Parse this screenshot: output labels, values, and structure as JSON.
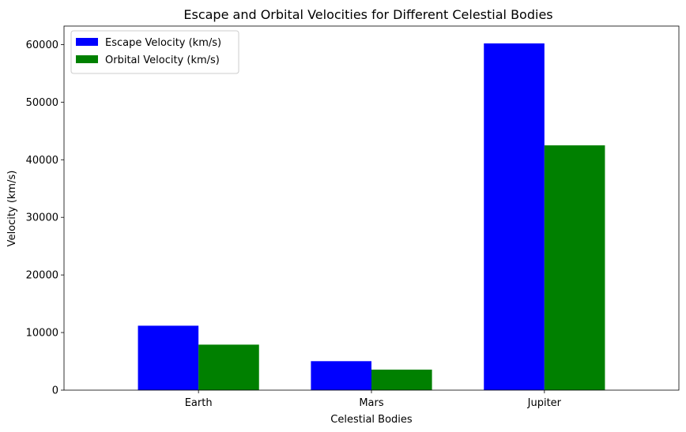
{
  "chart_data": {
    "type": "bar",
    "title": "Escape and Orbital Velocities for Different Celestial Bodies",
    "xlabel": "Celestial Bodies",
    "ylabel": "Velocity (km/s)",
    "categories": [
      "Earth",
      "Mars",
      "Jupiter"
    ],
    "series": [
      {
        "name": "Escape Velocity (km/s)",
        "color": "#0000ff",
        "values": [
          11186,
          5030,
          60200
        ]
      },
      {
        "name": "Orbital Velocity (km/s)",
        "color": "#008000",
        "values": [
          7900,
          3560,
          42500
        ]
      }
    ],
    "ylim": [
      0,
      63210
    ],
    "yticks": [
      0,
      10000,
      20000,
      30000,
      40000,
      50000,
      60000
    ],
    "legend": "top-left",
    "grid": false
  }
}
